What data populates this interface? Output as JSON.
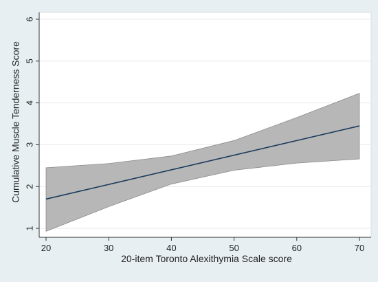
{
  "chart_data": {
    "type": "line",
    "xlabel": "20-item Toronto Alexithymia Scale score",
    "ylabel": "Cumulative Muscle Tenderness Score",
    "xlim": [
      20,
      70
    ],
    "ylim": [
      1,
      6
    ],
    "x_ticks": [
      20,
      30,
      40,
      50,
      60,
      70
    ],
    "y_ticks": [
      1,
      2,
      3,
      4,
      5,
      6
    ],
    "grid": "horizontal",
    "legend": "none",
    "series": [
      {
        "kind": "fitted_line",
        "x": [
          20,
          70
        ],
        "y": [
          1.7,
          3.45
        ],
        "color": "#1a3a5c"
      }
    ],
    "confidence_band": {
      "x": [
        20,
        30,
        40,
        50,
        60,
        70
      ],
      "upper": [
        2.45,
        2.55,
        2.73,
        3.1,
        3.65,
        4.23
      ],
      "lower": [
        0.93,
        1.52,
        2.06,
        2.39,
        2.56,
        2.66
      ],
      "color": "#b7b7b7"
    },
    "colors": {
      "background": "#e8eff2",
      "plot_area": "#ffffff",
      "band": "#b7b7b7",
      "band_edge": "#8c8c8c",
      "line": "#1a3a5c",
      "grid": "#e6eaec"
    }
  }
}
